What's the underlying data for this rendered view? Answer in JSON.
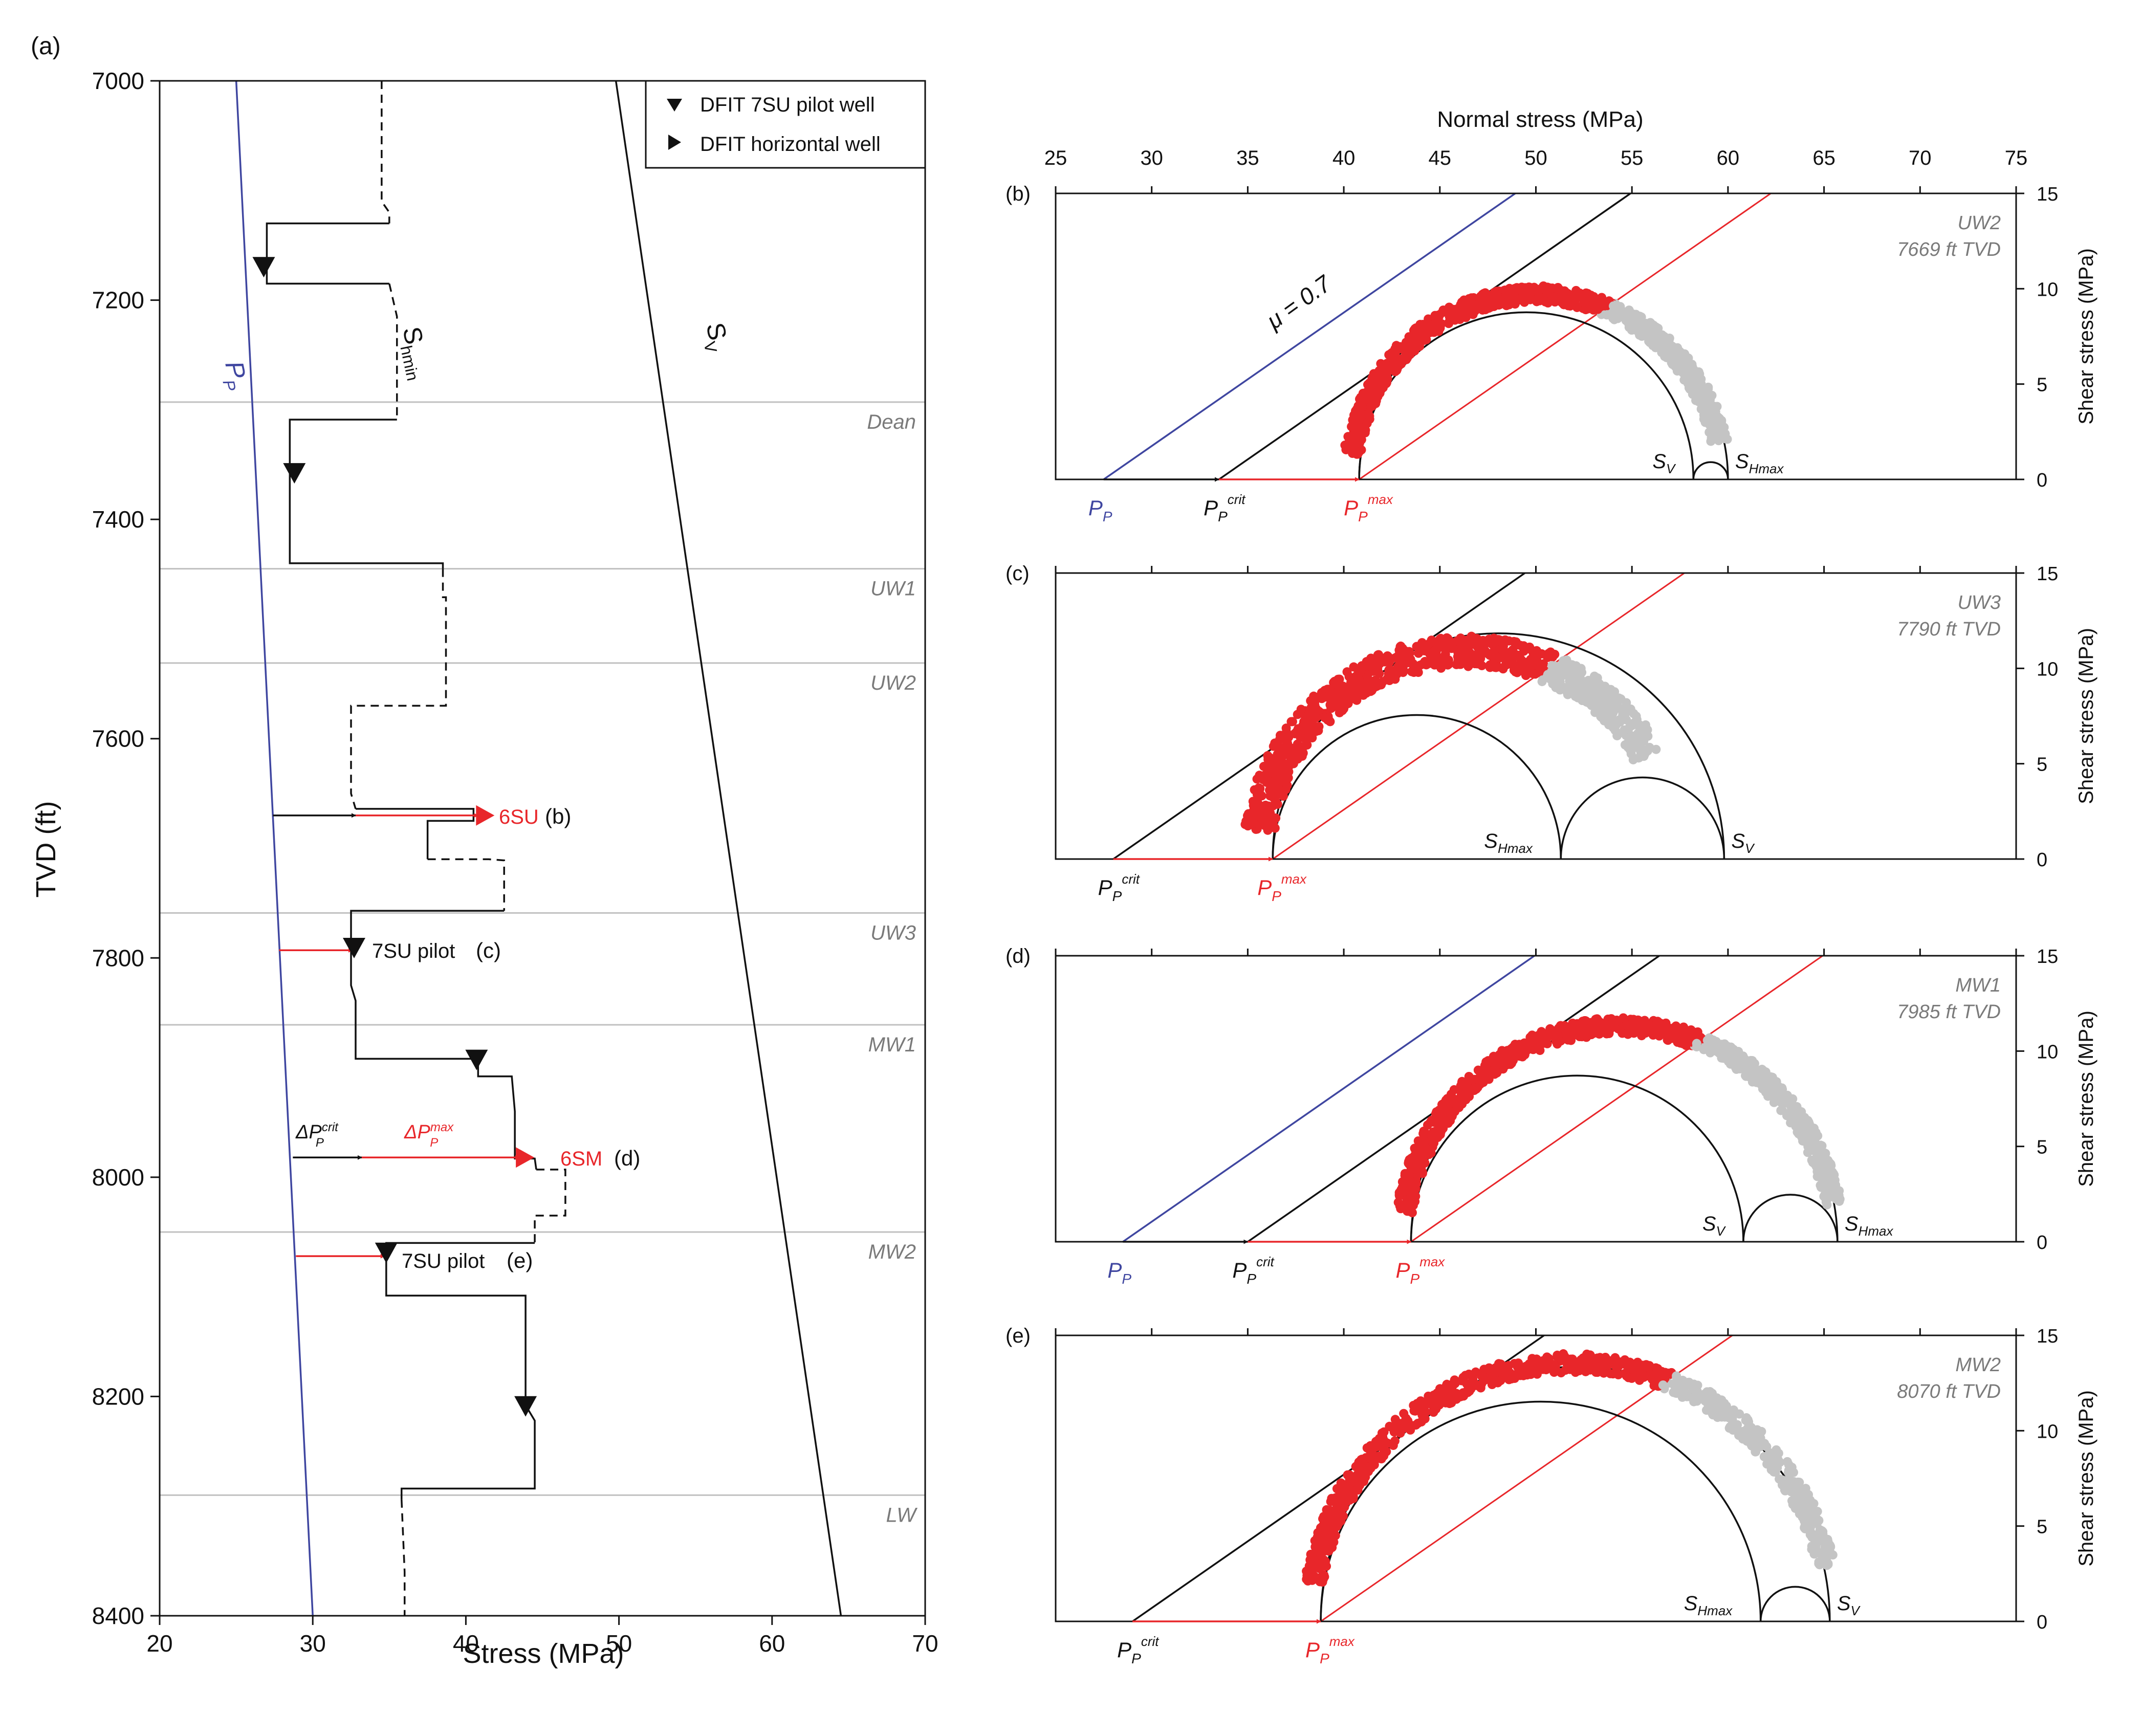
{
  "chart_data": [
    {
      "panel": "(a)",
      "type": "line",
      "xlabel": "Stress (MPa)",
      "ylabel": "TVD (ft)",
      "xlim": [
        20,
        70
      ],
      "ylim": [
        8400,
        7000
      ],
      "x_ticks": [
        20,
        30,
        40,
        50,
        60,
        70
      ],
      "y_ticks": [
        7000,
        7200,
        7400,
        7600,
        7800,
        8000,
        8200,
        8400
      ],
      "legend": [
        "DFIT 7SU pilot well",
        "DFIT horizontal well"
      ],
      "legend_position": "top-right",
      "formations": [
        {
          "name": "Dean",
          "depth": 7293
        },
        {
          "name": "UW1",
          "depth": 7445
        },
        {
          "name": "UW2",
          "depth": 7531
        },
        {
          "name": "UW3",
          "depth": 7759
        },
        {
          "name": "MW1",
          "depth": 7861
        },
        {
          "name": "MW2",
          "depth": 8050
        },
        {
          "name": "LW",
          "depth": 8290
        }
      ],
      "series": [
        {
          "name": "Pp",
          "color": "#3f46a0",
          "points": [
            [
              25,
              7000
            ],
            [
              30,
              8400
            ]
          ]
        },
        {
          "name": "Sv",
          "color": "#111111",
          "points": [
            [
              49.8,
              7000
            ],
            [
              64.5,
              8400
            ]
          ]
        },
        {
          "name": "Shmin",
          "color": "#111111",
          "segments": [
            {
              "style": "dashed",
              "points": [
                [
                  34.5,
                  7000
                ],
                [
                  34.5,
                  7110
                ],
                [
                  35,
                  7120
                ],
                [
                  35,
                  7130
                ]
              ]
            },
            {
              "style": "solid",
              "points": [
                [
                  35,
                  7130
                ],
                [
                  27,
                  7130
                ],
                [
                  27,
                  7185
                ],
                [
                  35,
                  7185
                ]
              ]
            },
            {
              "style": "dashed",
              "points": [
                [
                  35,
                  7185
                ],
                [
                  35.5,
                  7215
                ],
                [
                  35.5,
                  7309
                ]
              ]
            },
            {
              "style": "solid",
              "points": [
                [
                  35.5,
                  7309
                ],
                [
                  28.5,
                  7309
                ],
                [
                  28.5,
                  7440
                ],
                [
                  38.5,
                  7440
                ],
                [
                  38.5,
                  7445
                ]
              ]
            },
            {
              "style": "dashed",
              "points": [
                [
                  38.5,
                  7445
                ],
                [
                  38.5,
                  7471
                ],
                [
                  38.7,
                  7471
                ],
                [
                  38.7,
                  7570
                ],
                [
                  32.5,
                  7570
                ],
                [
                  32.5,
                  7650
                ],
                [
                  32.8,
                  7664
                ]
              ]
            },
            {
              "style": "solid",
              "points": [
                [
                  32.8,
                  7664
                ],
                [
                  40.5,
                  7664
                ],
                [
                  40.5,
                  7675
                ],
                [
                  37.5,
                  7675
                ],
                [
                  37.5,
                  7710
                ]
              ]
            },
            {
              "style": "dashed",
              "points": [
                [
                  37.5,
                  7710
                ],
                [
                  41.5,
                  7710
                ],
                [
                  42.5,
                  7711
                ],
                [
                  42.5,
                  7757
                ]
              ]
            },
            {
              "style": "solid",
              "points": [
                [
                  42.5,
                  7757
                ],
                [
                  32.5,
                  7757
                ],
                [
                  32.5,
                  7825
                ],
                [
                  32.8,
                  7839
                ],
                [
                  32.8,
                  7892
                ],
                [
                  40.8,
                  7892
                ],
                [
                  40.8,
                  7908
                ],
                [
                  43.0,
                  7908
                ],
                [
                  43.2,
                  7940
                ],
                [
                  43.2,
                  7983
                ],
                [
                  44.5,
                  7983
                ],
                [
                  44.6,
                  7993
                ]
              ]
            },
            {
              "style": "dashed",
              "points": [
                [
                  44.6,
                  7993
                ],
                [
                  46.5,
                  7993
                ],
                [
                  46.5,
                  8035
                ],
                [
                  44.5,
                  8035
                ],
                [
                  44.5,
                  8060
                ]
              ]
            },
            {
              "style": "solid",
              "points": [
                [
                  44.5,
                  8060
                ],
                [
                  34.8,
                  8060
                ],
                [
                  34.8,
                  8108
                ],
                [
                  43.9,
                  8108
                ],
                [
                  43.9,
                  8208
                ],
                [
                  44.5,
                  8222
                ],
                [
                  44.5,
                  8284
                ],
                [
                  35.8,
                  8284
                ],
                [
                  35.8,
                  8294
                ]
              ]
            },
            {
              "style": "dashed",
              "points": [
                [
                  35.8,
                  8294
                ],
                [
                  36.0,
                  8360
                ],
                [
                  36.0,
                  8400
                ]
              ]
            }
          ]
        }
      ],
      "markers_pilot_well": [
        [
          26.8,
          7170
        ],
        [
          28.8,
          7358
        ],
        [
          32.7,
          7791
        ],
        [
          40.7,
          7893
        ],
        [
          34.8,
          8069
        ],
        [
          43.9,
          8209
        ]
      ],
      "markers_horizontal_well": [
        [
          41.2,
          7670
        ],
        [
          43.8,
          7982
        ]
      ],
      "arrows": [
        {
          "color": "black",
          "from": [
            27.4,
            7670
          ],
          "to": [
            32.8,
            7670
          ]
        },
        {
          "color": "red",
          "from": [
            32.8,
            7670
          ],
          "to": [
            40.8,
            7670
          ]
        },
        {
          "color": "red",
          "from": [
            27.8,
            7793
          ],
          "to": [
            32.6,
            7793
          ]
        },
        {
          "color": "black",
          "from": [
            28.7,
            7982
          ],
          "to": [
            33.2,
            7982
          ]
        },
        {
          "color": "red",
          "from": [
            33.2,
            7982
          ],
          "to": [
            43.5,
            7982
          ]
        },
        {
          "color": "red",
          "from": [
            28.9,
            8072
          ],
          "to": [
            34.7,
            8072
          ]
        }
      ],
      "text_labels": {
        "Pp": "P",
        "Pp_sub": "P",
        "Shmin": "S",
        "Shmin_sub": "hmin",
        "Sv": "S",
        "Sv_sub": "V",
        "pilot_legend": "DFIT 7SU pilot well",
        "horizontal_legend": "DFIT horizontal well",
        "label_6SU": "6SU",
        "label_6SU_ref": "(b)",
        "label_7SU_c": "7SU pilot",
        "label_7SU_c_ref": "(c)",
        "label_6SM": "6SM",
        "label_6SM_ref": "(d)",
        "label_7SU_e": "7SU pilot",
        "label_7SU_e_ref": "(e)",
        "dPcrit": "ΔP",
        "dPcrit_sup": "crit",
        "dPcrit_sub": "P",
        "dPmax": "ΔP",
        "dPmax_sup": "max",
        "dPmax_sub": "P"
      }
    },
    {
      "panel": "(b)",
      "type": "scatter",
      "title_top_axis": "Normal stress (MPa)",
      "ylabel": "Shear stress (MPa)",
      "xlim": [
        25,
        75
      ],
      "ylim": [
        0,
        15
      ],
      "x_ticks": [
        25,
        30,
        35,
        40,
        45,
        50,
        55,
        60,
        65,
        70,
        75
      ],
      "y_ticks": [
        0,
        5,
        10,
        15
      ],
      "formation": "UW2",
      "depth_label": "7669 ft TVD",
      "friction_label": "μ = 0.7",
      "pp": 27.5,
      "pp_crit": 33.5,
      "pp_max": 40.8,
      "outer_circle": {
        "s3": 40.8,
        "s1": 60.0
      },
      "inner_circles": [
        {
          "s3": 40.8,
          "s1": 58.2
        },
        {
          "s3": 58.2,
          "s1": 60.0
        }
      ],
      "point_band": {
        "s3": 40.8,
        "s1": 59.3,
        "spread": 0.9,
        "theta_min": 8,
        "theta_max": 168
      },
      "bottom_labels": [
        "S_V",
        "S_Hmax"
      ],
      "arrow_labels": [
        "P_P",
        "P_P^crit",
        "P_P^max"
      ]
    },
    {
      "panel": "(c)",
      "type": "scatter",
      "ylabel": "Shear stress (MPa)",
      "xlim": [
        25,
        75
      ],
      "ylim": [
        0,
        15
      ],
      "y_ticks": [
        0,
        5,
        10,
        15
      ],
      "formation": "UW3",
      "depth_label": "7790 ft TVD",
      "pp_crit": 28.0,
      "pp_max": 36.3,
      "outer_circle": {
        "s3": 36.3,
        "s1": 59.8
      },
      "inner_circles": [
        {
          "s3": 36.3,
          "s1": 51.3
        },
        {
          "s3": 51.3,
          "s1": 59.8
        }
      ],
      "point_band": {
        "s3": 36.3,
        "s1": 56.5,
        "spread": 1.6,
        "theta_min": 8,
        "theta_max": 150
      },
      "bottom_labels": [
        "S_Hmax",
        "S_V"
      ],
      "arrow_labels": [
        "P_P^crit",
        "P_P^max"
      ]
    },
    {
      "panel": "(d)",
      "type": "scatter",
      "ylabel": "Shear stress (MPa)",
      "xlim": [
        25,
        75
      ],
      "ylim": [
        0,
        15
      ],
      "y_ticks": [
        0,
        5,
        10,
        15
      ],
      "formation": "MW1",
      "depth_label": "7985 ft TVD",
      "pp": 28.5,
      "pp_crit": 35.0,
      "pp_max": 43.5,
      "outer_circle": {
        "s3": 43.5,
        "s1": 65.7
      },
      "inner_circles": [
        {
          "s3": 43.5,
          "s1": 60.8
        },
        {
          "s3": 60.8,
          "s1": 65.7
        }
      ],
      "point_band": {
        "s3": 43.5,
        "s1": 65.2,
        "spread": 0.9,
        "theta_min": 8,
        "theta_max": 170
      },
      "bottom_labels": [
        "S_V",
        "S_Hmax"
      ],
      "arrow_labels": [
        "P_P",
        "P_P^crit",
        "P_P^max"
      ]
    },
    {
      "panel": "(e)",
      "type": "scatter",
      "ylabel": "Shear stress (MPa)",
      "xlim": [
        25,
        75
      ],
      "ylim": [
        0,
        15
      ],
      "y_ticks": [
        0,
        5,
        10,
        15
      ],
      "formation": "MW2",
      "depth_label": "8070 ft TVD",
      "pp_crit": 29.0,
      "pp_max": 38.8,
      "outer_circle": {
        "s3": 38.8,
        "s1": 65.3
      },
      "inner_circles": [
        {
          "s3": 38.8,
          "s1": 61.7
        },
        {
          "s3": 61.7,
          "s1": 65.3
        }
      ],
      "point_band": {
        "s3": 38.8,
        "s1": 64.9,
        "spread": 1.0,
        "theta_min": 8,
        "theta_max": 168
      },
      "bottom_labels": [
        "S_Hmax",
        "S_V"
      ],
      "arrow_labels": [
        "P_P^crit",
        "P_P^max"
      ]
    }
  ],
  "colors": {
    "pp_blue": "#3f46a0",
    "red": "#e8262a",
    "gray_points": "#c4c4c4",
    "formation_line": "#c0c0c0",
    "formation_text": "#7a7a7a",
    "axis": "#111111"
  }
}
